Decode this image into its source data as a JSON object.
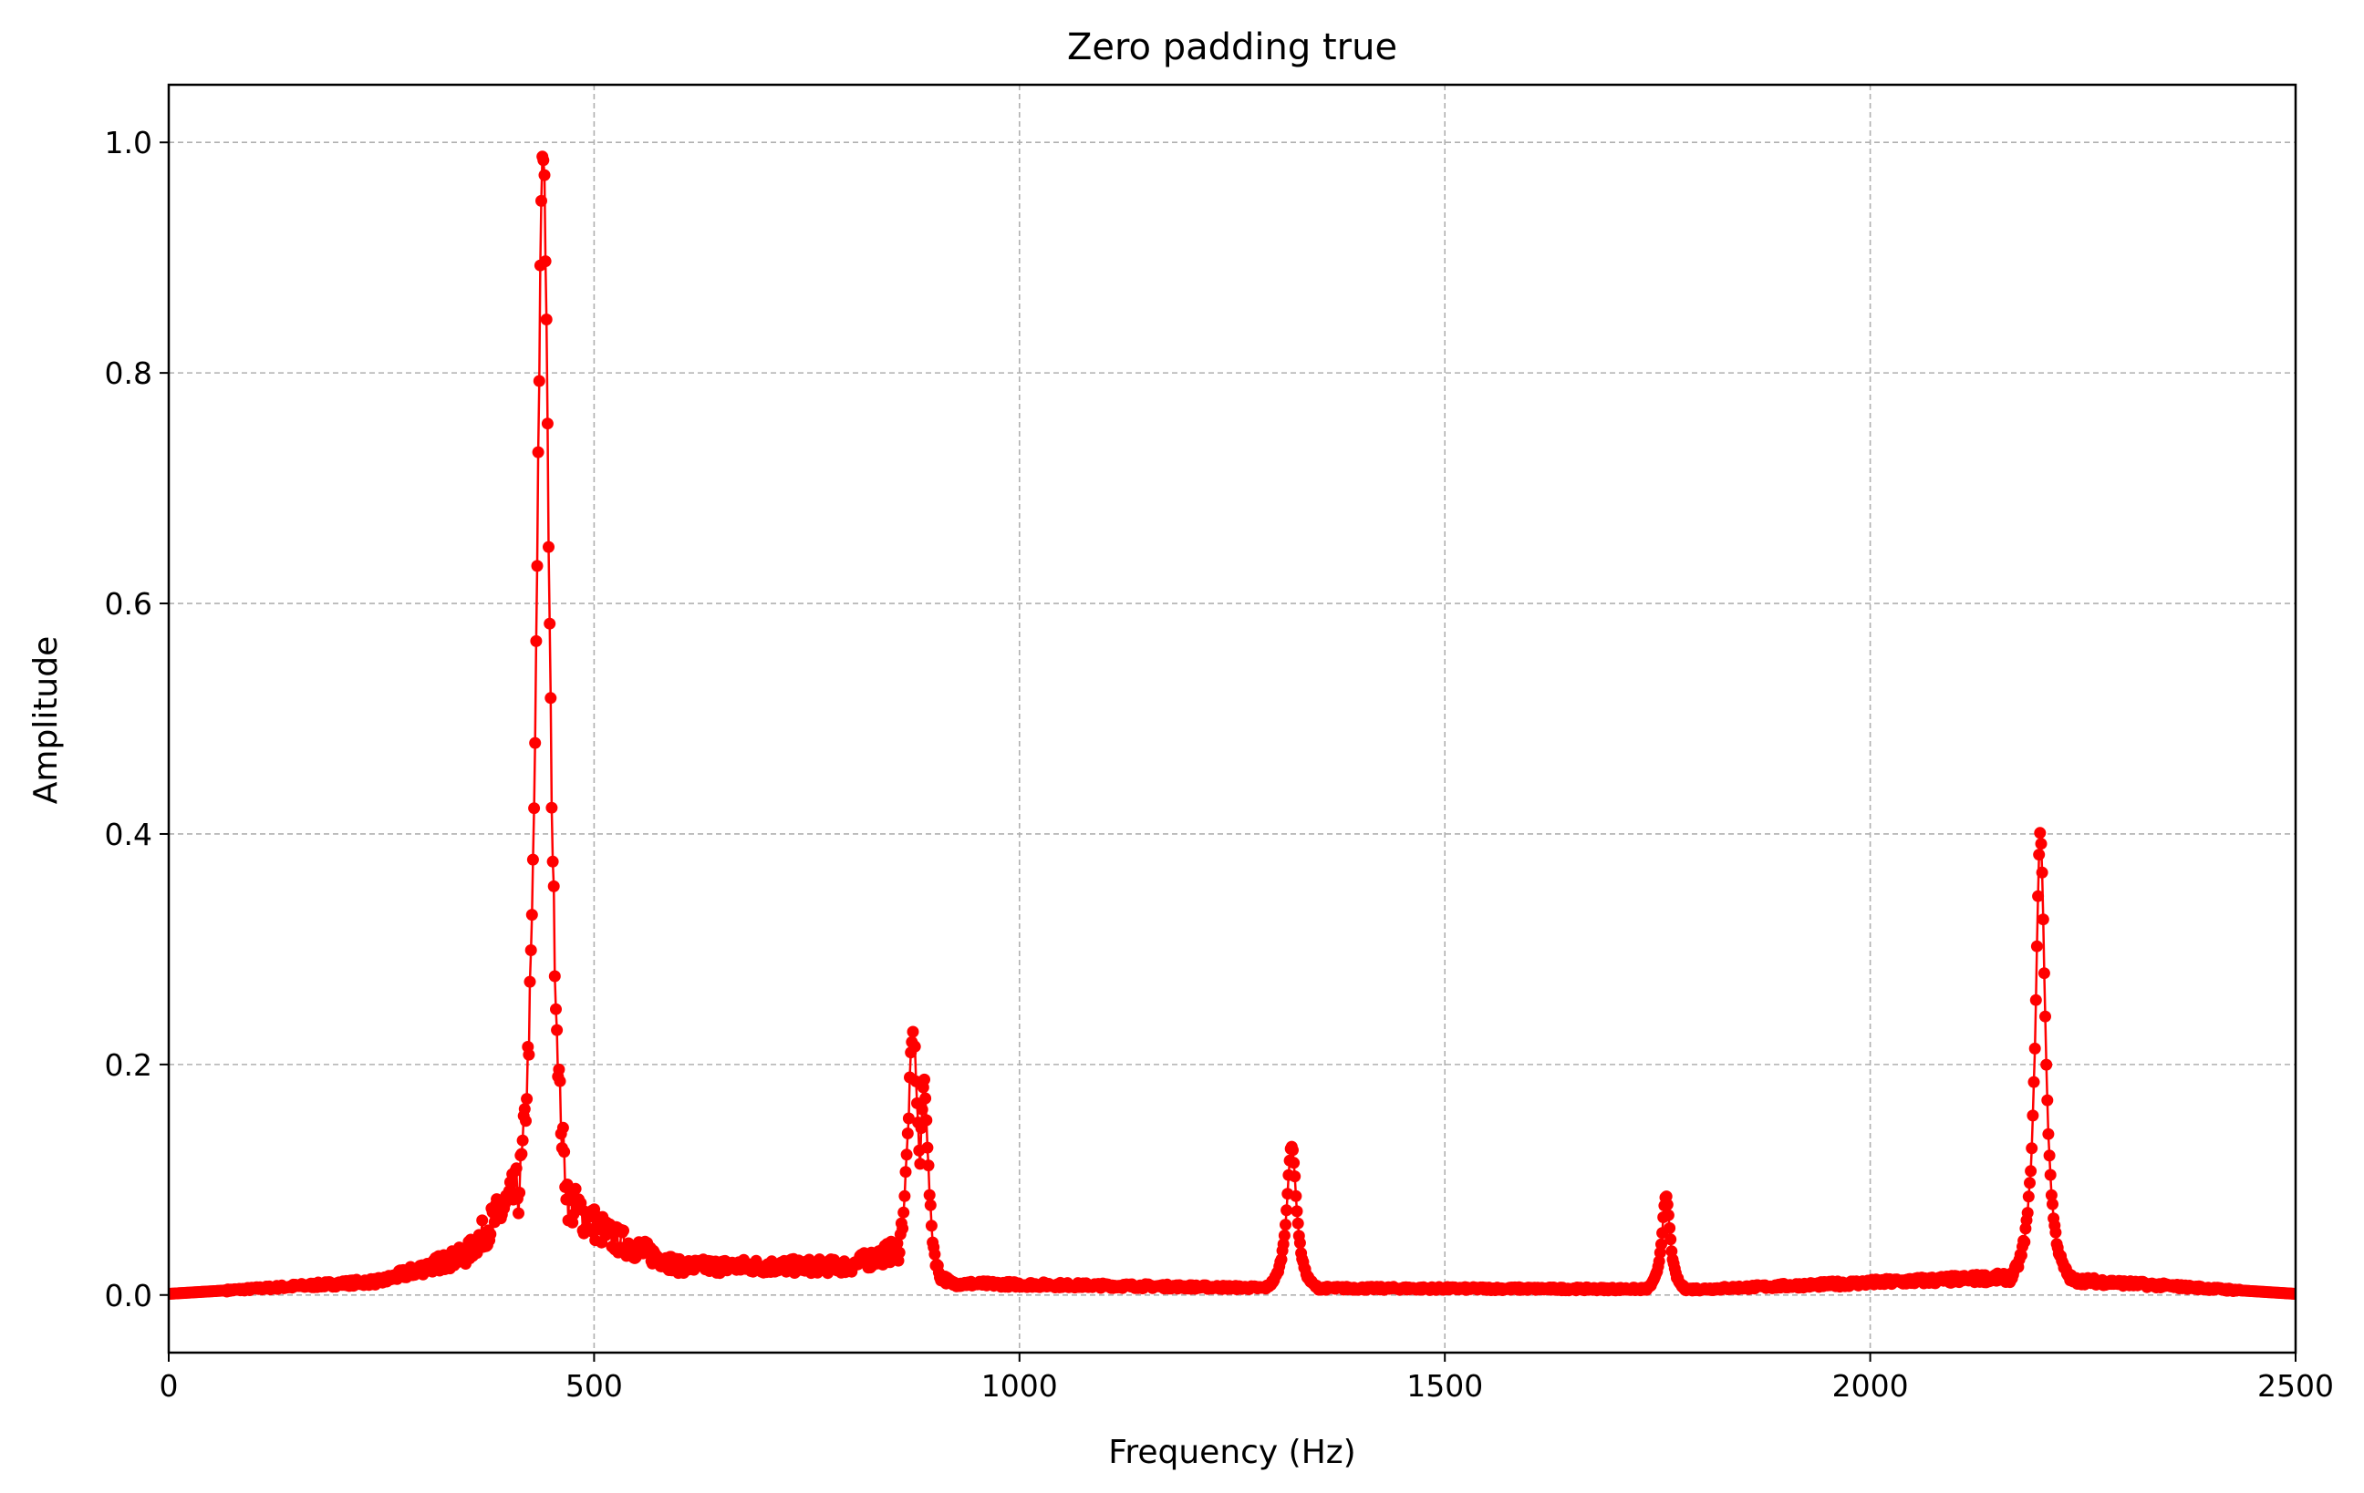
{
  "chart_data": {
    "type": "line",
    "title": "Zero padding true",
    "xlabel": "Frequency (Hz)",
    "ylabel": "Amplitude",
    "xlim": [
      0,
      2500
    ],
    "ylim": [
      -0.05,
      1.05
    ],
    "grid": true,
    "x_ticks": [
      0,
      500,
      1000,
      1500,
      2000,
      2500
    ],
    "x_tick_labels": [
      "0",
      "500",
      "1000",
      "1500",
      "2000",
      "2500"
    ],
    "y_ticks": [
      0.0,
      0.2,
      0.4,
      0.6,
      0.8,
      1.0
    ],
    "y_tick_labels": [
      "0.0",
      "0.2",
      "0.4",
      "0.6",
      "0.8",
      "1.0"
    ],
    "series": [
      {
        "color": "#ff0000",
        "marker": "circle",
        "peaks": [
          {
            "x": 440,
            "y": 1.0,
            "width": 9
          },
          {
            "x": 875,
            "y": 0.225,
            "width": 8
          },
          {
            "x": 888,
            "y": 0.185,
            "width": 6
          },
          {
            "x": 1320,
            "y": 0.13,
            "width": 7
          },
          {
            "x": 1760,
            "y": 0.085,
            "width": 6
          },
          {
            "x": 2200,
            "y": 0.4,
            "width": 7
          }
        ],
        "baseline": [
          {
            "x": 0,
            "y": 0.001
          },
          {
            "x": 250,
            "y": 0.012
          },
          {
            "x": 350,
            "y": 0.035
          },
          {
            "x": 410,
            "y": 0.09
          },
          {
            "x": 470,
            "y": 0.08
          },
          {
            "x": 520,
            "y": 0.05
          },
          {
            "x": 600,
            "y": 0.025
          },
          {
            "x": 800,
            "y": 0.025
          },
          {
            "x": 860,
            "y": 0.04
          },
          {
            "x": 920,
            "y": 0.01
          },
          {
            "x": 1300,
            "y": 0.006
          },
          {
            "x": 1800,
            "y": 0.005
          },
          {
            "x": 2150,
            "y": 0.015
          },
          {
            "x": 2260,
            "y": 0.012
          },
          {
            "x": 2500,
            "y": 0.001
          }
        ]
      }
    ]
  }
}
